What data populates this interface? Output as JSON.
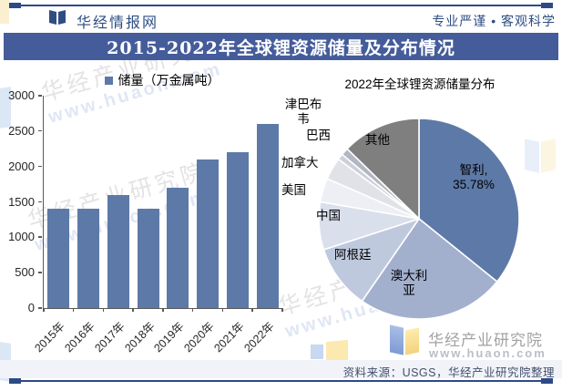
{
  "header": {
    "brand": "华经情报网",
    "slogan": "专业严谨 • 客观科学",
    "title": "2015-2022年全球锂资源储量及分布情况"
  },
  "chart_data": [
    {
      "type": "bar",
      "series_label": "储量（万金属吨）",
      "categories": [
        "2015年",
        "2016年",
        "2017年",
        "2018年",
        "2019年",
        "2020年",
        "2021年",
        "2022年"
      ],
      "values": [
        1400,
        1400,
        1600,
        1400,
        1700,
        2100,
        2200,
        2600
      ],
      "ylim": [
        0,
        3000
      ],
      "ytick_step": 500,
      "bar_color": "#5D79A7",
      "legend_position": "top",
      "grid": false
    },
    {
      "type": "pie",
      "title": "2022年全球锂资源储量分布",
      "start_angle_deg": 0,
      "direction": "clockwise",
      "slices": [
        {
          "label": "智利",
          "pct": 35.78,
          "color": "#5D79A7"
        },
        {
          "label": "澳大利亚",
          "pct": 23.85,
          "color": "#A2B0CE"
        },
        {
          "label": "阿根廷",
          "pct": 10.38,
          "color": "#BFC9DE"
        },
        {
          "label": "中国",
          "pct": 7.69,
          "color": "#DADFEC"
        },
        {
          "label": "美国",
          "pct": 3.85,
          "color": "#EDEFF5"
        },
        {
          "label": "加拿大",
          "pct": 3.58,
          "color": "#E0E2E8"
        },
        {
          "label": "巴西",
          "pct": 0.96,
          "color": "#CDD0D8"
        },
        {
          "label": "津巴布韦",
          "pct": 1.19,
          "color": "#B2B7C2"
        },
        {
          "label": "其他",
          "pct": 12.72,
          "color": "#7F7F7F"
        }
      ]
    }
  ],
  "pie_labels": {
    "zimbabwe": "津巴布韦",
    "brazil": "巴西",
    "canada": "加拿大",
    "usa": "美国",
    "china": "中国",
    "argentina": "阿根廷",
    "other": "其他",
    "chile_line1": "智利,",
    "chile_line2": "35.78%",
    "australia_line1": "澳大利",
    "australia_line2": "亚"
  },
  "footer": {
    "source": "资料来源：USGS，华经产业研究院整理",
    "logo_text": "华经产业研究院",
    "logo_url": "www.huaon.com"
  },
  "watermark": {
    "text": "华经产业研究院",
    "url": "www.huaon.com"
  },
  "colors": {
    "brand_blue": "#2E4E82",
    "banner_bg": "#455C9A",
    "rule": "#2E4A86",
    "axis": "#595959",
    "footer_strip": "#F1F3F9",
    "source_text": "#44506A"
  }
}
